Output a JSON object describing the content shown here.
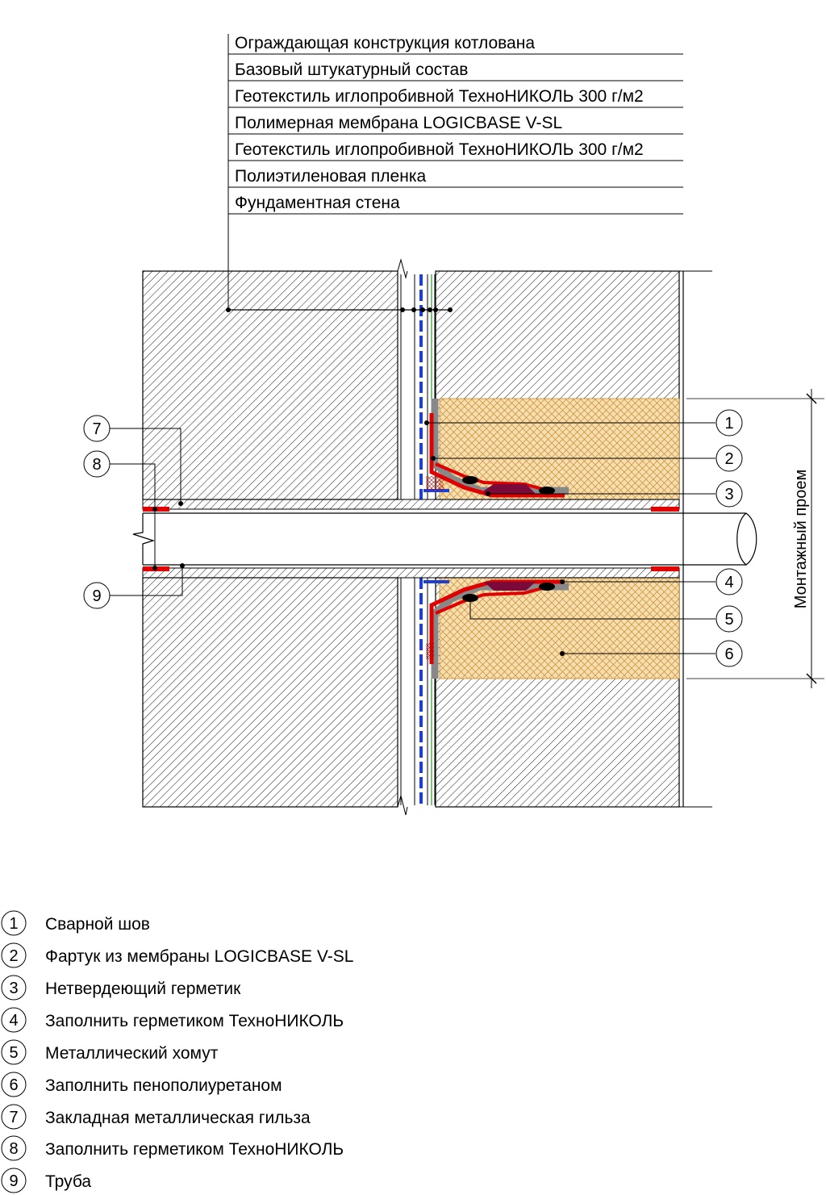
{
  "layers": [
    "Ограждающая конструкция котлована",
    "Базовый штукатурный состав",
    "Геотекстиль иглопробивной ТехноНИКОЛЬ 300 г/м2",
    "Полимерная мембрана LOGICBASE V-SL",
    "Геотекстиль иглопробивной ТехноНИКОЛЬ 300 г/м2",
    "Полиэтиленовая пленка",
    "Фундаментная стена"
  ],
  "opening_label": "Монтажный проем",
  "callouts": [
    {
      "num": "1"
    },
    {
      "num": "2"
    },
    {
      "num": "3"
    },
    {
      "num": "4"
    },
    {
      "num": "5"
    },
    {
      "num": "6"
    },
    {
      "num": "7"
    },
    {
      "num": "8"
    },
    {
      "num": "9"
    }
  ],
  "legend": [
    {
      "num": "1",
      "text": "Сварной шов"
    },
    {
      "num": "2",
      "text": "Фартук из мембраны LOGICBASE V-SL"
    },
    {
      "num": "3",
      "text": "Нетвердеющий герметик"
    },
    {
      "num": "4",
      "text": "Заполнить герметиком ТехноНИКОЛЬ"
    },
    {
      "num": "5",
      "text": "Металлический хомут"
    },
    {
      "num": "6",
      "text": "Заполнить пенополиуретаном"
    },
    {
      "num": "7",
      "text": "Закладная металлическая гильза"
    },
    {
      "num": "8",
      "text": "Заполнить герметиком ТехноНИКОЛЬ"
    },
    {
      "num": "9",
      "text": "Труба"
    }
  ],
  "colors": {
    "membrane": "#e00000",
    "film": "#1f3fd0",
    "geotextile": "#2a9a2a",
    "foam": "#f3d6a4",
    "foam_hatch": "#c98a2a",
    "sealant": "#7a0a3a",
    "line": "#000000"
  }
}
